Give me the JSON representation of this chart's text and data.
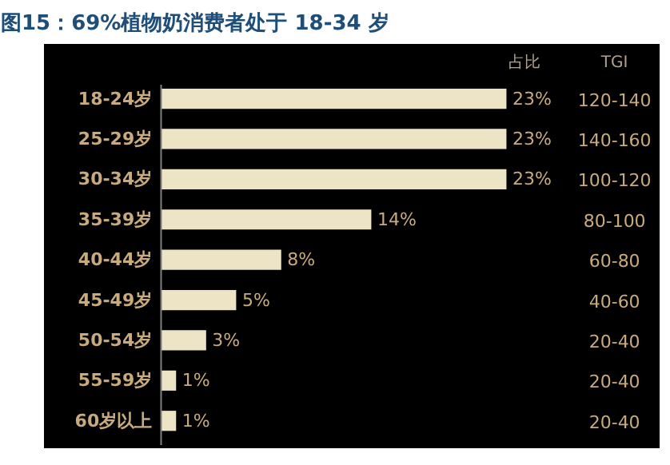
{
  "chart_data": {
    "type": "bar",
    "orientation": "horizontal",
    "title": "图15：69%植物奶消费者处于 18-34 岁",
    "categories": [
      "18-24岁",
      "25-29岁",
      "30-34岁",
      "35-39岁",
      "40-44岁",
      "45-49岁",
      "50-54岁",
      "55-59岁",
      "60岁以上"
    ],
    "values": [
      23,
      23,
      23,
      14,
      8,
      5,
      3,
      1,
      1
    ],
    "value_labels": [
      "23%",
      "23%",
      "23%",
      "14%",
      "8%",
      "5%",
      "3%",
      "1%",
      "1%"
    ],
    "color": "#ece4c4",
    "grid": false,
    "annotations": [
      "占比",
      "TGI",
      "120-140",
      "140-160",
      "100-120",
      "80-100",
      "60-80",
      "40-60",
      "20-40",
      "20-40",
      "20-40"
    ]
  }
}
